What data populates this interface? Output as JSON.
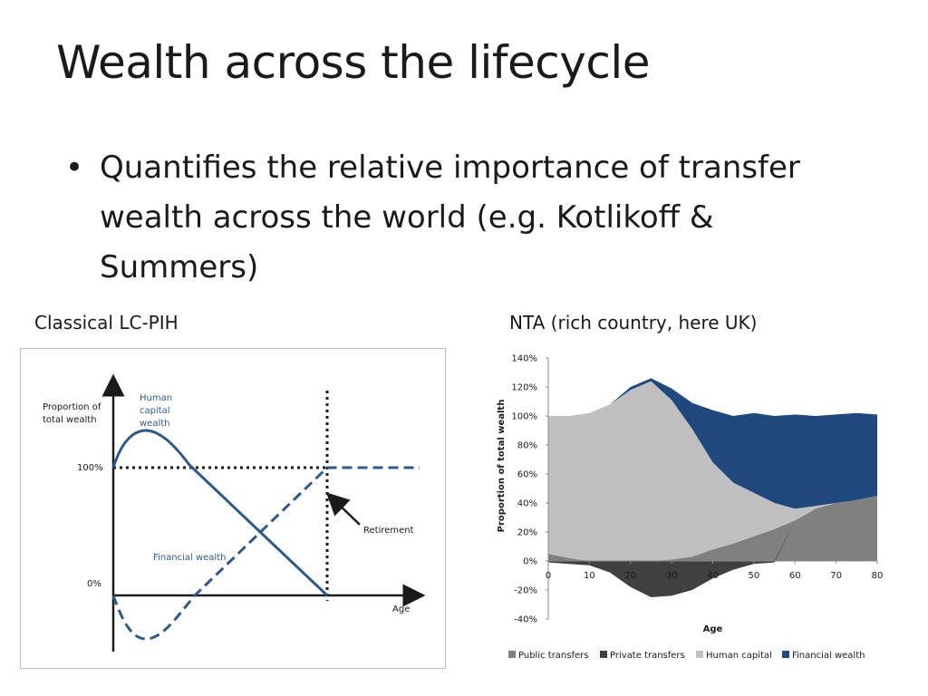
{
  "slide": {
    "title": "Wealth across the lifecycle",
    "bullet": "Quantifies the relative importance of transfer wealth across the world (e.g. Kotlikoff & Summers)",
    "bullet_glyph": "•",
    "caption_left": "Classical LC-PIH",
    "caption_right": "NTA (rich country, here UK)"
  },
  "chart_data": [
    {
      "type": "line",
      "ylabel": "Proportion of total wealth",
      "xlabel": "Age",
      "y_ticks": [
        "100%",
        "0%"
      ],
      "annotations": {
        "human": "Human capital wealth",
        "financial": "Financial wealth",
        "retirement": "Retirement"
      },
      "series": [
        {
          "name": "Human capital wealth",
          "style": "solid",
          "color": "#2e5a8a",
          "shape": "rises from 100% to a peak of ~130% early in life, then declines linearly to 0% at retirement"
        },
        {
          "name": "Financial wealth",
          "style": "dashed",
          "color": "#2e5a8a",
          "shape": "starts at 0%, dips to ~-45% early in life, rises to 100% at retirement, then stays at 100%"
        }
      ],
      "reference_lines": [
        "100% level (dotted)",
        "retirement (dotted vertical)"
      ]
    },
    {
      "type": "area",
      "ylabel": "Proportion of total wealth",
      "xlabel": "Age",
      "ylim": [
        -40,
        140
      ],
      "y_ticks": [
        "140%",
        "120%",
        "100%",
        "80%",
        "60%",
        "40%",
        "20%",
        "0%",
        "-20%",
        "-40%"
      ],
      "x_ticks": [
        "0",
        "10",
        "20",
        "30",
        "40",
        "50",
        "60",
        "70",
        "80"
      ],
      "legend_position": "bottom",
      "x": [
        0,
        5,
        10,
        15,
        20,
        25,
        30,
        35,
        40,
        45,
        50,
        55,
        60,
        65,
        70,
        75,
        80
      ],
      "series": [
        {
          "name": "Public transfers",
          "color": "#808080",
          "values": [
            5,
            2,
            0,
            0,
            0,
            0,
            1,
            3,
            8,
            12,
            17,
            22,
            28,
            36,
            40,
            42,
            45
          ]
        },
        {
          "name": "Private transfers",
          "color": "#404040",
          "values": [
            -1,
            -2,
            -3,
            -8,
            -18,
            -25,
            -24,
            -20,
            -12,
            -6,
            -2,
            -1,
            0,
            0,
            0,
            0,
            0
          ]
        },
        {
          "name": "Human capital",
          "color": "#c0c0c0",
          "values": [
            95,
            98,
            102,
            108,
            118,
            124,
            110,
            88,
            60,
            42,
            30,
            18,
            8,
            2,
            0,
            0,
            0
          ]
        },
        {
          "name": "Financial wealth",
          "color": "#1f497d",
          "values": [
            0,
            0,
            0,
            0,
            2,
            2,
            8,
            18,
            36,
            46,
            55,
            60,
            65,
            62,
            61,
            60,
            56
          ]
        }
      ]
    }
  ]
}
